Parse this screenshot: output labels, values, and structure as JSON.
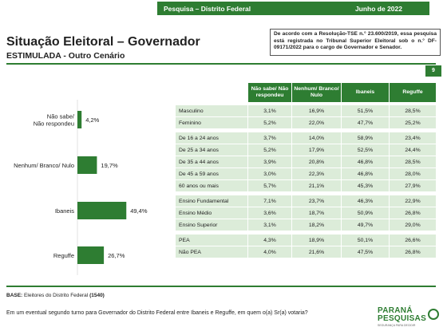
{
  "header": {
    "left": "Pesquisa – Distrito Federal",
    "right": "Junho de 2022"
  },
  "title": "Situação Eleitoral – Governador",
  "subtitle": "ESTIMULADA - Outro Cenário",
  "notice": "De acordo com a Resolução-TSE n.° 23.600/2019, essa pesquisa está registrada no Tribunal Superior Eleitoral sob o n.° DF-09171/2022 para o cargo de Governador e Senador.",
  "page_number": "9",
  "chart_data": {
    "type": "bar",
    "orientation": "horizontal",
    "categories": [
      "Não sabe/ Não respondeu",
      "Nenhum/ Branco/ Nulo",
      "Ibaneis",
      "Reguffe"
    ],
    "values": [
      4.2,
      19.7,
      49.4,
      26.7
    ],
    "value_labels": [
      "4,2%",
      "19,7%",
      "49,4%",
      "26,7%"
    ],
    "color": "#2e7d32"
  },
  "table": {
    "headers": [
      "",
      "Não sabe/ Não respondeu",
      "Nenhum/ Branco/ Nulo",
      "Ibaneis",
      "Reguffe"
    ],
    "groups": [
      [
        [
          "Masculino",
          "3,1%",
          "16,9%",
          "51,5%",
          "28,5%"
        ],
        [
          "Feminino",
          "5,2%",
          "22,0%",
          "47,7%",
          "25,2%"
        ]
      ],
      [
        [
          "De 16 a 24 anos",
          "3,7%",
          "14,0%",
          "58,9%",
          "23,4%"
        ],
        [
          "De 25 a 34 anos",
          "5,2%",
          "17,9%",
          "52,5%",
          "24,4%"
        ],
        [
          "De 35 a 44 anos",
          "3,9%",
          "20,8%",
          "46,8%",
          "28,5%"
        ],
        [
          "De 45 a 59 anos",
          "3,0%",
          "22,3%",
          "46,8%",
          "28,0%"
        ],
        [
          "60 anos ou mais",
          "5,7%",
          "21,1%",
          "45,3%",
          "27,9%"
        ]
      ],
      [
        [
          "Ensino Fundamental",
          "7,1%",
          "23,7%",
          "46,3%",
          "22,9%"
        ],
        [
          "Ensino Médio",
          "3,6%",
          "18,7%",
          "50,9%",
          "26,8%"
        ],
        [
          "Ensino Superior",
          "3,1%",
          "18,2%",
          "49,7%",
          "29,0%"
        ]
      ],
      [
        [
          "PEA",
          "4,3%",
          "18,9%",
          "50,1%",
          "26,6%"
        ],
        [
          "Não PEA",
          "4,0%",
          "21,6%",
          "47,5%",
          "26,8%"
        ]
      ]
    ]
  },
  "base": {
    "label": "BASE:",
    "text": "Eleitores do Distrito Federal",
    "n": "(1540)"
  },
  "question": "Em um eventual segundo turno para Governador do Distrito Federal entre Ibaneis e Reguffe, em quem o(a) Sr(a) votaria?",
  "logo": {
    "line1": "PARANÁ",
    "line2": "PESQUISAS",
    "tagline": "SEGURANÇA PARA DECIDIR"
  }
}
